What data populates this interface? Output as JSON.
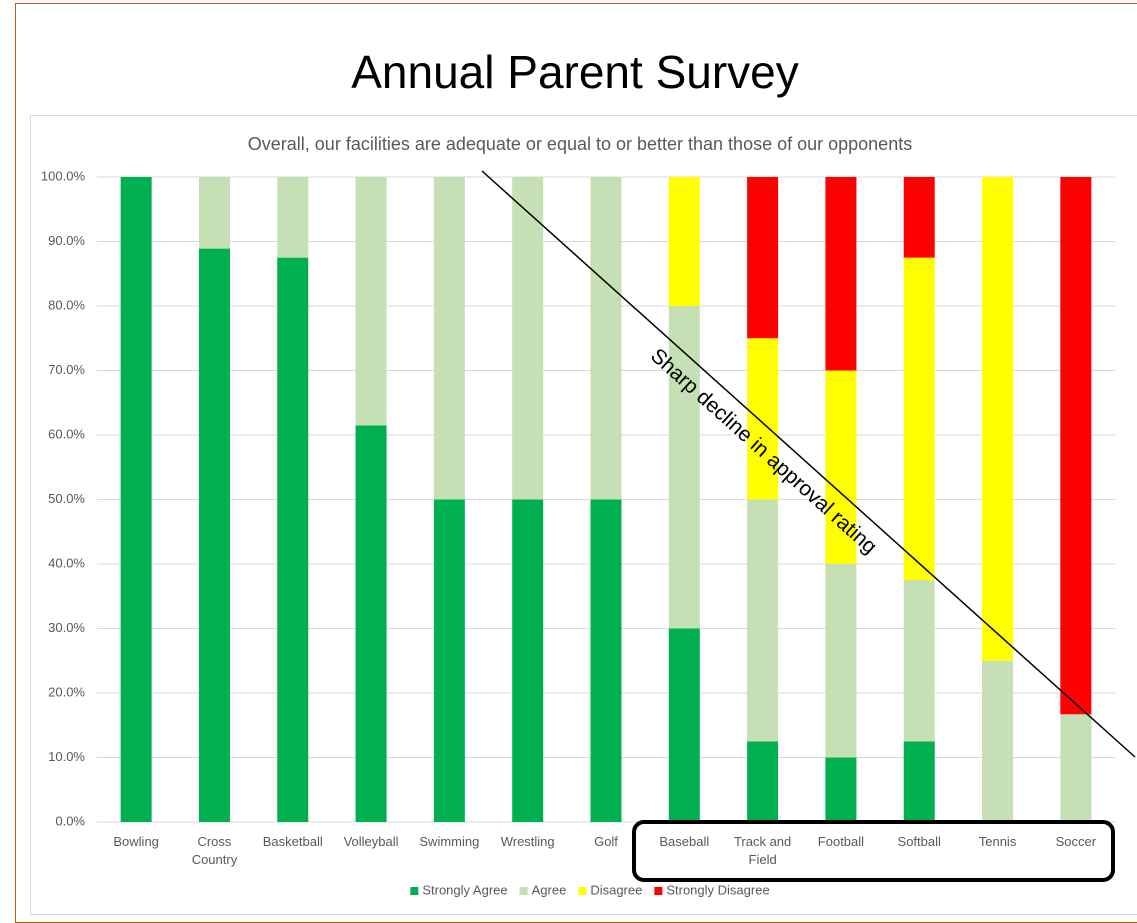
{
  "title": "Annual Parent Survey",
  "chart_data": {
    "type": "stacked_bar",
    "title": "Overall, our facilities are adequate or equal to or better than those of our opponents",
    "categories": [
      "Bowling",
      "Cross Country",
      "Basketball",
      "Volleyball",
      "Swimming",
      "Wrestling",
      "Golf",
      "Baseball",
      "Track and Field",
      "Football",
      "Softball",
      "Tennis",
      "Soccer"
    ],
    "series": [
      {
        "name": "Strongly Agree",
        "color": "#00b050",
        "values": [
          100,
          88.9,
          87.5,
          61.5,
          50,
          50,
          50,
          30,
          12.5,
          10,
          12.5,
          0,
          0
        ]
      },
      {
        "name": "Agree",
        "color": "#c5e0b4",
        "values": [
          0,
          11.1,
          12.5,
          38.5,
          50,
          50,
          50,
          50,
          37.5,
          30,
          25,
          25,
          16.7
        ]
      },
      {
        "name": "Disagree",
        "color": "#ffff00",
        "values": [
          0,
          0,
          0,
          0,
          0,
          0,
          0,
          20,
          25,
          30,
          50,
          75,
          0
        ]
      },
      {
        "name": "Strongly Disagree",
        "color": "#ff0000",
        "values": [
          0,
          0,
          0,
          0,
          0,
          0,
          0,
          0,
          25,
          30,
          12.5,
          0,
          83.3
        ]
      }
    ],
    "ylim": [
      0,
      100
    ],
    "yticks": [
      {
        "value": 0,
        "label": "0.0%"
      },
      {
        "value": 10,
        "label": "10.0%"
      },
      {
        "value": 20,
        "label": "20.0%"
      },
      {
        "value": 30,
        "label": "30.0%"
      },
      {
        "value": 40,
        "label": "40.0%"
      },
      {
        "value": 50,
        "label": "50.0%"
      },
      {
        "value": 60,
        "label": "60.0%"
      },
      {
        "value": 70,
        "label": "70.0%"
      },
      {
        "value": 80,
        "label": "80.0%"
      },
      {
        "value": 90,
        "label": "90.0%"
      },
      {
        "value": 100,
        "label": "100.0%"
      }
    ],
    "grid": true,
    "legend": "bottom",
    "annotation": "Sharp decline in approval rating"
  }
}
